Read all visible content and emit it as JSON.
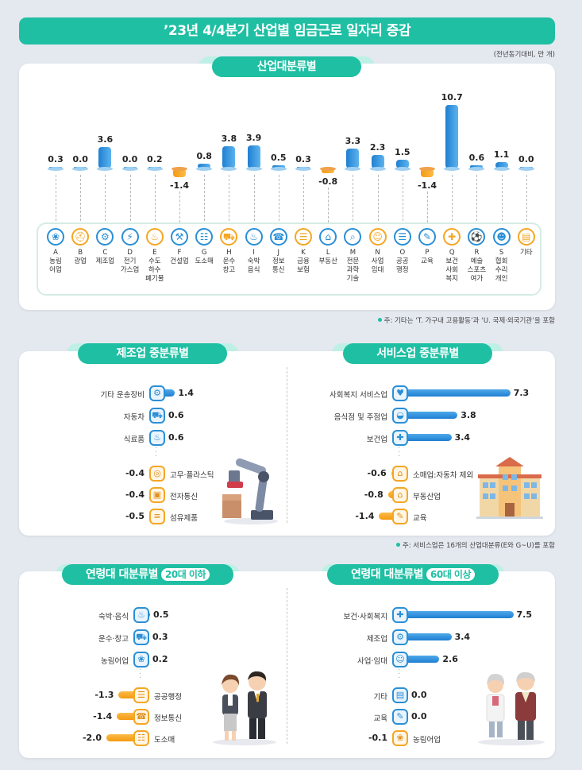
{
  "title": "’23년 4/4분기 산업별 임금근로 일자리 증감",
  "unit": "(전년동기대비, 만 개)",
  "chart_data": [
    {
      "type": "bar",
      "title": "산업대분류별",
      "categories": [
        "A\n농림\n어업",
        "B\n광업",
        "C\n제조업",
        "D\n전기\n가스업",
        "E\n수도\n하수\n폐기물",
        "F\n건설업",
        "G\n도소매",
        "H\n운수\n창고",
        "I\n숙박\n음식",
        "J\n정보\n통신",
        "K\n금융\n보험",
        "L\n부동산",
        "M\n전문\n과학\n기술",
        "N\n사업\n임대",
        "O\n공공\n행정",
        "P\n교육",
        "Q\n보건\n사회\n복지",
        "R\n예술\n스포츠\n여가",
        "S\n협회\n수리\n개인",
        "기타"
      ],
      "values": [
        0.3,
        0.0,
        3.6,
        0.0,
        0.2,
        -1.4,
        0.8,
        3.8,
        3.9,
        0.5,
        0.3,
        -0.8,
        3.3,
        2.3,
        1.5,
        -1.4,
        10.7,
        0.6,
        1.1,
        0.0
      ],
      "value_labels": [
        "0.3",
        "0.0",
        "3.6",
        "0.0",
        "0.2",
        "-1.4",
        "0.8",
        "3.8",
        "3.9",
        "0.5",
        "0.3",
        "-0.8",
        "3.3",
        "2.3",
        "1.5",
        "-1.4",
        "10.7",
        "0.6",
        "1.1",
        "0.0"
      ],
      "icons": [
        "grain-icon",
        "helmet-icon",
        "gears-icon",
        "lightning-icon",
        "faucet-icon",
        "shovel-icon",
        "basket-icon",
        "truck-icon",
        "dining-icon",
        "phone-icon",
        "bank-icon",
        "house-icon",
        "microscope-icon",
        "people-icon",
        "document-icon",
        "graduation-cap-icon",
        "medical-bag-icon",
        "sports-icon",
        "group-icon",
        "etc-icon"
      ],
      "note": "주: 기타는 ‘T. 가구내 고용활동’과 ‘U. 국제·외국기관’을 포함"
    },
    {
      "type": "bar",
      "title": "제조업 중분류별",
      "categories": [
        "기타 운송장비",
        "자동차",
        "식료품",
        "고무·플라스틱",
        "전자통신",
        "섬유제품"
      ],
      "values": [
        1.4,
        0.6,
        0.6,
        -0.4,
        -0.4,
        -0.5
      ],
      "value_labels": [
        "1.4",
        "0.6",
        "0.6",
        "-0.4",
        "-0.4",
        "-0.5"
      ],
      "icons": [
        "gear-icon",
        "car-icon",
        "food-icon",
        "plastic-icon",
        "chip-icon",
        "fabric-icon"
      ]
    },
    {
      "type": "bar",
      "title": "서비스업 중분류별",
      "categories": [
        "사회복지 서비스업",
        "음식점 및 주점업",
        "보건업",
        "소매업:자동차 제외",
        "부동산업",
        "교육"
      ],
      "values": [
        7.3,
        3.8,
        3.4,
        -0.6,
        -0.8,
        -1.4
      ],
      "value_labels": [
        "7.3",
        "3.8",
        "3.4",
        "-0.6",
        "-0.8",
        "-1.4"
      ],
      "icons": [
        "care-hands-icon",
        "bowl-icon",
        "medical-cross-icon",
        "shop-icon",
        "house-icon",
        "graduation-cap-icon"
      ],
      "note": "주: 서비스업은 16개의 산업대분류(E와 G~U)를 포함"
    },
    {
      "type": "bar",
      "title": "연령대 대분류별",
      "title_badge": "20대 이하",
      "categories": [
        "숙박·음식",
        "운수·창고",
        "농림어업",
        "공공행정",
        "정보통신",
        "도소매"
      ],
      "values": [
        0.5,
        0.3,
        0.2,
        -1.3,
        -1.4,
        -2.0
      ],
      "value_labels": [
        "0.5",
        "0.3",
        "0.2",
        "-1.3",
        "-1.4",
        "-2.0"
      ],
      "icons": [
        "dining-icon",
        "truck-icon",
        "grain-icon",
        "document-icon",
        "phone-icon",
        "basket-icon"
      ]
    },
    {
      "type": "bar",
      "title": "연령대 대분류별",
      "title_badge": "60대 이상",
      "categories": [
        "보건·사회복지",
        "제조업",
        "사업·임대",
        "기타",
        "교육",
        "농림어업"
      ],
      "values": [
        7.5,
        3.4,
        2.6,
        0.0,
        0.0,
        -0.1
      ],
      "value_labels": [
        "7.5",
        "3.4",
        "2.6",
        "0.0",
        "0.0",
        "-0.1"
      ],
      "icons": [
        "medical-bag-icon",
        "gears-icon",
        "people-icon",
        "etc-icon",
        "graduation-cap-icon",
        "grain-icon"
      ]
    }
  ],
  "colors": {
    "accent": "#1fbfa3",
    "positive": "#2a8fd6",
    "negative": "#f5a623"
  }
}
